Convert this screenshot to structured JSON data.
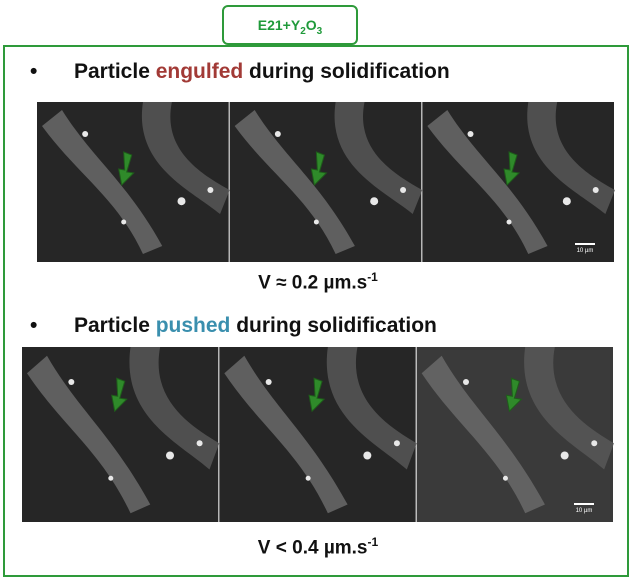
{
  "tag": {
    "main": "E21+Y",
    "sub1": "2",
    "mid": "O",
    "sub2": "3"
  },
  "sections": [
    {
      "bullet": "•",
      "text_before": "Particle ",
      "highlight": "engulfed",
      "text_after": " during solidification",
      "caption": {
        "main": "V ≈ 0.2 µm.s",
        "sup": "-1"
      },
      "scale_bar": "10 µm"
    },
    {
      "bullet": "•",
      "text_before": "Particle ",
      "highlight": "pushed",
      "text_after": " during solidification",
      "caption": {
        "main": "V < 0.4 µm.s",
        "sup": "-1"
      },
      "scale_bar": "10 µm"
    }
  ]
}
